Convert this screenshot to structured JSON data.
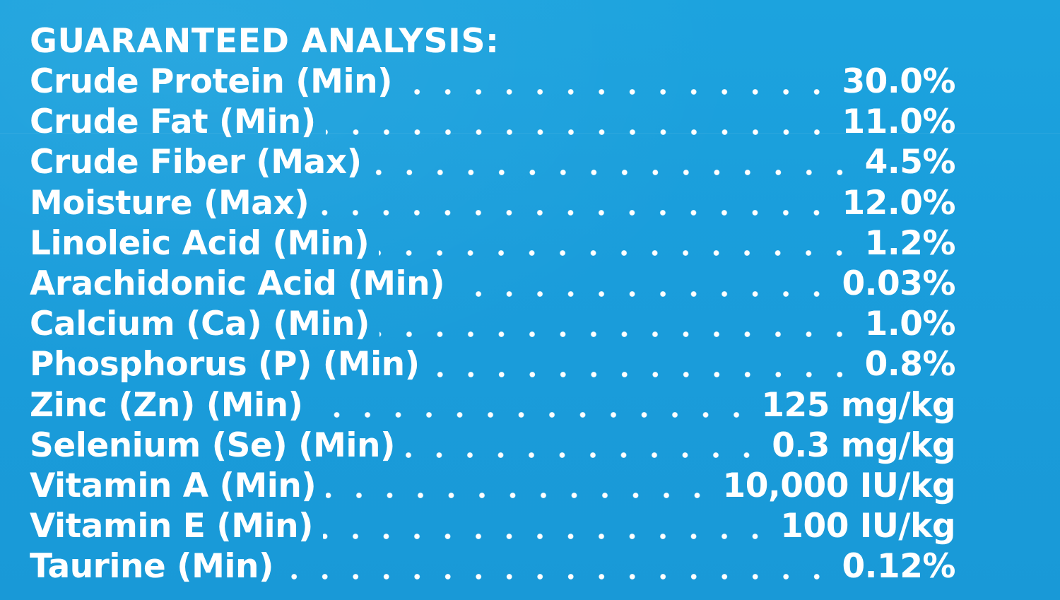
{
  "heading": "GUARANTEED ANALYSIS:",
  "rows": [
    {
      "label": "Crude Protein (Min)",
      "value": "30.0%"
    },
    {
      "label": "Crude Fat (Min)",
      "value": "11.0%"
    },
    {
      "label": "Crude Fiber (Max)",
      "value": "4.5%"
    },
    {
      "label": "Moisture (Max)",
      "value": "12.0%"
    },
    {
      "label": "Linoleic Acid (Min)",
      "value": "1.2%"
    },
    {
      "label": "Arachidonic Acid (Min)",
      "value": "0.03%"
    },
    {
      "label": "Calcium (Ca) (Min)",
      "value": "1.0%"
    },
    {
      "label": "Phosphorus (P) (Min)",
      "value": "0.8%"
    },
    {
      "label": "Zinc (Zn) (Min)",
      "value": "125 mg/kg"
    },
    {
      "label": "Selenium (Se) (Min)",
      "value": "0.3 mg/kg"
    },
    {
      "label": "Vitamin A (Min)",
      "value": "10,000 IU/kg"
    },
    {
      "label": "Vitamin E (Min)",
      "value": "100 IU/kg"
    },
    {
      "label": "Taurine (Min)",
      "value": "0.12%"
    }
  ],
  "colors": {
    "background": "#1a9fdb",
    "text": "#ffffff"
  }
}
